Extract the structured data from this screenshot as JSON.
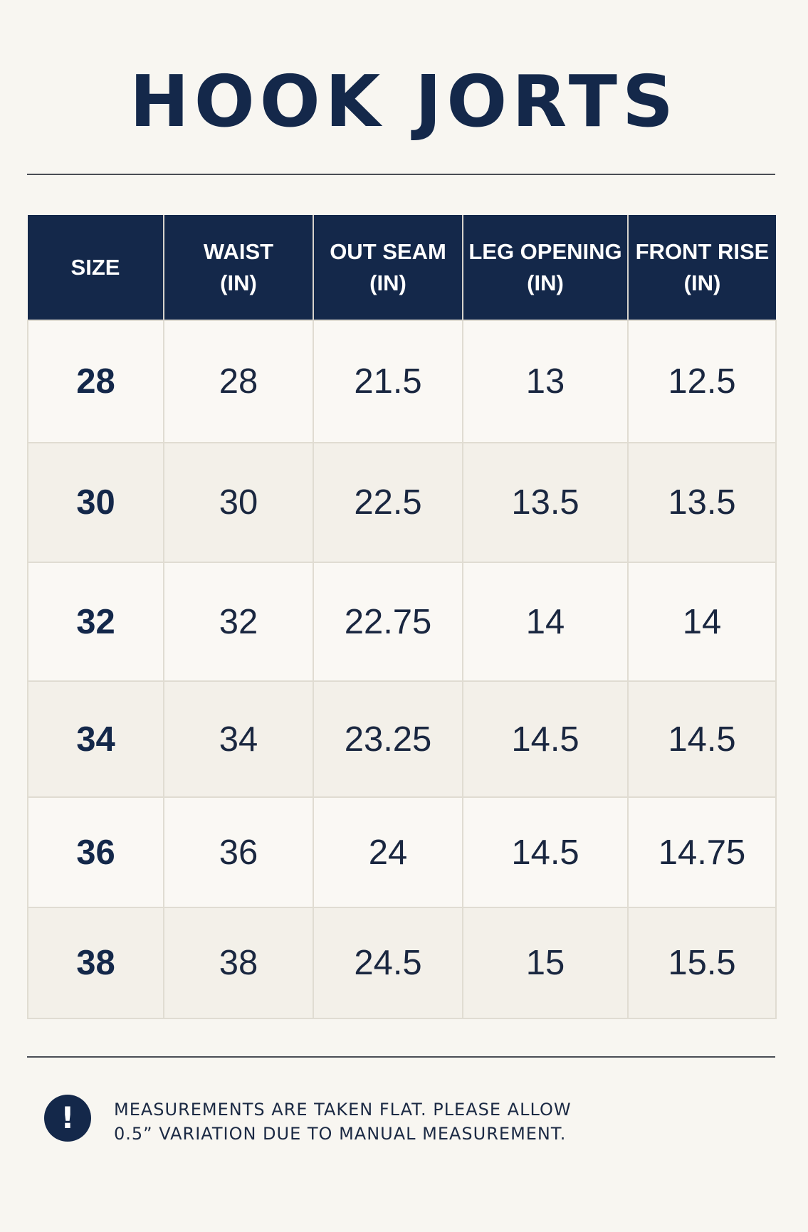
{
  "title": "HOOK JORTS",
  "table": {
    "headers": [
      {
        "line1": "SIZE",
        "line2": ""
      },
      {
        "line1": "WAIST",
        "line2": "(IN)"
      },
      {
        "line1": "OUT SEAM",
        "line2": "(IN)"
      },
      {
        "line1": "LEG OPENING",
        "line2": "(IN)"
      },
      {
        "line1": "FRONT RISE",
        "line2": "(IN)"
      }
    ],
    "rows": [
      [
        "28",
        "28",
        "21.5",
        "13",
        "12.5"
      ],
      [
        "30",
        "30",
        "22.5",
        "13.5",
        "13.5"
      ],
      [
        "32",
        "32",
        "22.75",
        "14",
        "14"
      ],
      [
        "34",
        "34",
        "23.25",
        "14.5",
        "14.5"
      ],
      [
        "36",
        "36",
        "24",
        "14.5",
        "14.75"
      ],
      [
        "38",
        "38",
        "24.5",
        "15",
        "15.5"
      ]
    ]
  },
  "note": {
    "icon": "exclamation-icon",
    "icon_glyph": "!",
    "line1": "MEASUREMENTS ARE TAKEN FLAT. PLEASE ALLOW",
    "line2": "0.5” VARIATION DUE TO MANUAL MEASUREMENT."
  },
  "colors": {
    "navy": "#14284a",
    "background": "#f8f6f1"
  }
}
